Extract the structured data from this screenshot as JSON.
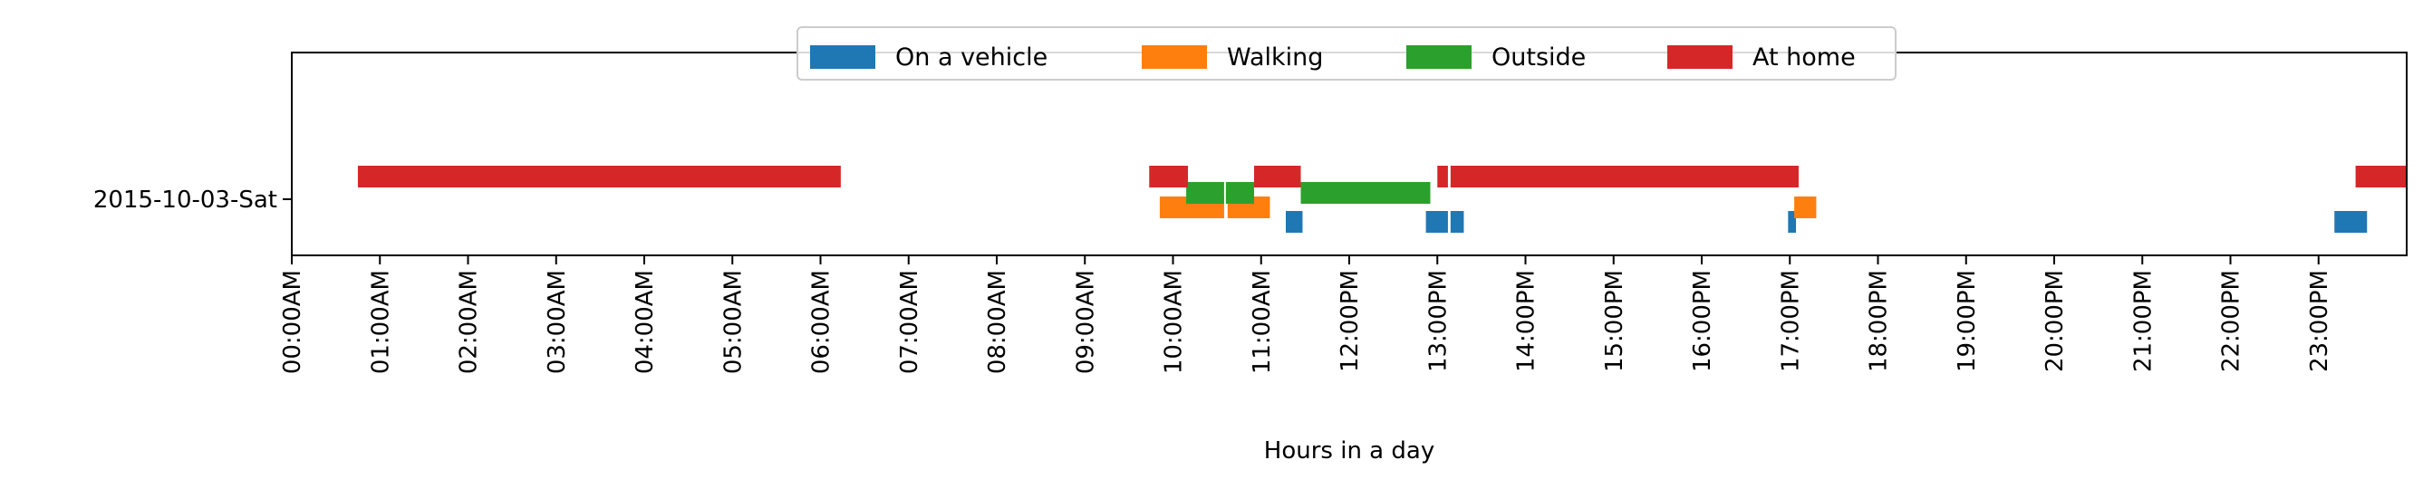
{
  "chart_data": {
    "type": "bar",
    "orientation": "horizontal-timeline",
    "title": "",
    "xlabel": "Hours in a day",
    "ylabel": "",
    "xlim": [
      0,
      24
    ],
    "x_tick_labels": [
      "00:00AM",
      "01:00AM",
      "02:00AM",
      "03:00AM",
      "04:00AM",
      "05:00AM",
      "06:00AM",
      "07:00AM",
      "08:00AM",
      "09:00AM",
      "10:00AM",
      "11:00AM",
      "12:00PM",
      "13:00PM",
      "14:00PM",
      "15:00PM",
      "16:00PM",
      "17:00PM",
      "18:00PM",
      "19:00PM",
      "20:00PM",
      "21:00PM",
      "22:00PM",
      "23:00PM"
    ],
    "y_categories": [
      "2015-10-03-Sat"
    ],
    "grid": false,
    "legend_position": "top-center",
    "series": [
      {
        "name": "On a vehicle",
        "color": "#1f77b4",
        "level": 0,
        "intervals": [
          [
            11.28,
            11.47
          ],
          [
            12.87,
            13.12
          ],
          [
            13.15,
            13.3
          ],
          [
            16.98,
            17.07
          ],
          [
            23.18,
            23.55
          ]
        ]
      },
      {
        "name": "Walking",
        "color": "#ff7f0e",
        "level": 1,
        "intervals": [
          [
            9.85,
            10.58
          ],
          [
            10.62,
            11.1
          ],
          [
            17.05,
            17.3
          ]
        ]
      },
      {
        "name": "Outside",
        "color": "#2ca02c",
        "level": 2,
        "intervals": [
          [
            10.15,
            10.58
          ],
          [
            10.6,
            10.92
          ],
          [
            11.45,
            12.92
          ]
        ]
      },
      {
        "name": "At home",
        "color": "#d62728",
        "level": 3,
        "intervals": [
          [
            0.75,
            6.23
          ],
          [
            9.73,
            10.17
          ],
          [
            10.92,
            11.45
          ],
          [
            13.0,
            13.12
          ],
          [
            13.15,
            17.1
          ],
          [
            23.42,
            24.0
          ]
        ]
      }
    ]
  }
}
